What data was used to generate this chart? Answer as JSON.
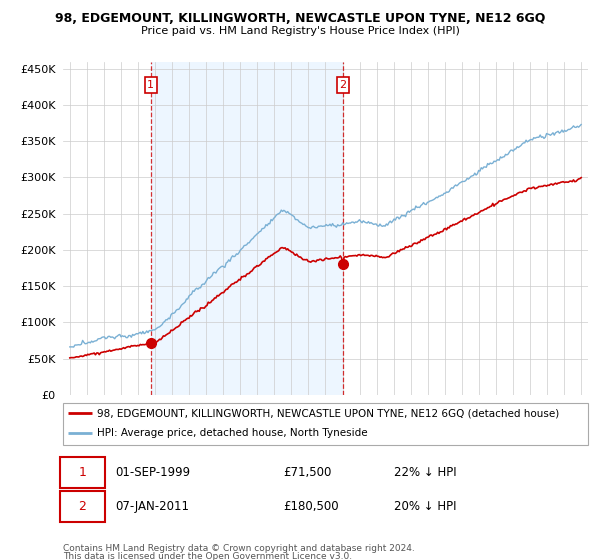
{
  "title": "98, EDGEMOUNT, KILLINGWORTH, NEWCASTLE UPON TYNE, NE12 6GQ",
  "subtitle": "Price paid vs. HM Land Registry's House Price Index (HPI)",
  "legend_line1": "98, EDGEMOUNT, KILLINGWORTH, NEWCASTLE UPON TYNE, NE12 6GQ (detached house)",
  "legend_line2": "HPI: Average price, detached house, North Tyneside",
  "annotation1_label": "1",
  "annotation1_date": "01-SEP-1999",
  "annotation1_price": "£71,500",
  "annotation1_hpi": "22% ↓ HPI",
  "annotation2_label": "2",
  "annotation2_date": "07-JAN-2011",
  "annotation2_price": "£180,500",
  "annotation2_hpi": "20% ↓ HPI",
  "footnote1": "Contains HM Land Registry data © Crown copyright and database right 2024.",
  "footnote2": "This data is licensed under the Open Government Licence v3.0.",
  "sale1_year": 1999.75,
  "sale1_price": 71500,
  "sale2_year": 2011.03,
  "sale2_price": 180500,
  "hpi_color": "#7ab0d4",
  "price_color": "#cc0000",
  "vline_color": "#cc0000",
  "bg_highlight": "#ddeeff",
  "ylim_min": 0,
  "ylim_max": 460000,
  "xlim_min": 1994.6,
  "xlim_max": 2025.4
}
